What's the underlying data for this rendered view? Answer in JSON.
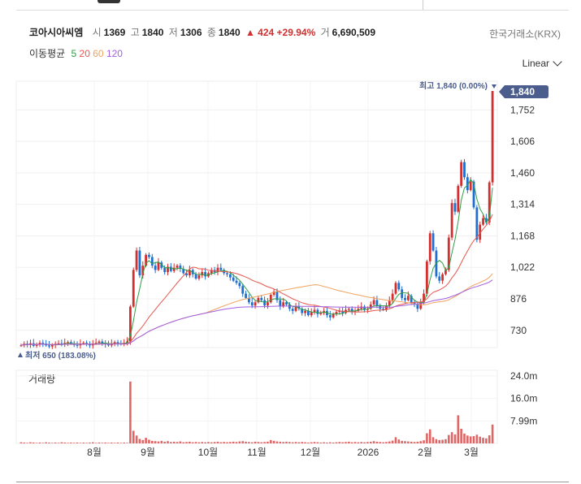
{
  "stock": {
    "name": "코아시아씨엠",
    "open_label": "시",
    "open": "1369",
    "high_label": "고",
    "high": "1840",
    "low_label": "저",
    "low": "1306",
    "close_label": "종",
    "close": "1840",
    "change": "▲ 424 +29.94%",
    "volume_label": "거",
    "volume": "6,690,509",
    "exchange": "한국거래소(KRX)"
  },
  "moving_avg": {
    "label": "이동평균",
    "periods": [
      "5",
      "20",
      "60",
      "120"
    ],
    "colors": [
      "#2e9e44",
      "#e8574f",
      "#f0a35e",
      "#a25fe0"
    ]
  },
  "scale_mode": "Linear",
  "colors": {
    "up": "#d32f2f",
    "down": "#1e6fd0",
    "axis_tag": "#4a5d8c",
    "volume": "#e06666"
  },
  "chart_data": {
    "type": "candlestick",
    "price_ticks": [
      "1,752",
      "1,606",
      "1,460",
      "1,314",
      "1,168",
      "1,022",
      "876",
      "730"
    ],
    "price_tick_values": [
      1752,
      1606,
      1460,
      1314,
      1168,
      1022,
      876,
      730
    ],
    "last_price": "1,840",
    "high_marker": "최고 1,840 (0.00%)",
    "low_marker": "최저 650 (183.08%)",
    "volume_title": "거래량",
    "volume_ticks": [
      "24.0m",
      "16.0m",
      "7.99m"
    ],
    "volume_tick_values": [
      24.0,
      16.0,
      7.99
    ],
    "x_ticks": [
      "8월",
      "9월",
      "10월",
      "11월",
      "12월",
      "2026",
      "2월",
      "3월"
    ],
    "close": [
      660,
      668,
      663,
      670,
      658,
      665,
      672,
      668,
      660,
      655,
      662,
      668,
      670,
      665,
      672,
      675,
      668,
      662,
      660,
      668,
      672,
      665,
      660,
      668,
      672,
      678,
      670,
      665,
      660,
      668,
      675,
      670,
      665,
      672,
      678,
      840,
      1010,
      1100,
      985,
      1030,
      1080,
      1070,
      1030,
      1010,
      1045,
      1020,
      1000,
      1025,
      1005,
      1020,
      1030,
      1015,
      995,
      985,
      1010,
      990,
      970,
      985,
      1000,
      980,
      995,
      1010,
      1000,
      1020,
      1010,
      995,
      990,
      975,
      960,
      950,
      935,
      900,
      880,
      860,
      845,
      860,
      880,
      870,
      845,
      860,
      895,
      910,
      870,
      840,
      860,
      850,
      830,
      820,
      840,
      830,
      810,
      820,
      800,
      815,
      825,
      805,
      810,
      820,
      800,
      790,
      805,
      815,
      820,
      810,
      825,
      830,
      815,
      820,
      830,
      840,
      825,
      830,
      850,
      870,
      845,
      830,
      825,
      845,
      870,
      900,
      950,
      920,
      880,
      870,
      890,
      860,
      850,
      830,
      860,
      900,
      1050,
      1180,
      1100,
      980,
      960,
      990,
      1010,
      1160,
      1320,
      1280,
      1400,
      1510,
      1440,
      1380,
      1420,
      1300,
      1150,
      1220,
      1250,
      1230,
      1416,
      1840
    ],
    "volume_m": [
      0.4,
      0.3,
      0.2,
      0.4,
      0.3,
      0.2,
      0.3,
      0.2,
      0.4,
      0.3,
      0.2,
      0.3,
      0.2,
      0.4,
      0.3,
      0.2,
      0.3,
      0.2,
      0.3,
      0.2,
      0.3,
      0.2,
      0.3,
      0.4,
      0.2,
      0.3,
      0.2,
      0.3,
      0.2,
      0.3,
      0.2,
      0.3,
      0.2,
      0.3,
      0.2,
      22.0,
      4.5,
      2.8,
      1.6,
      1.2,
      2.0,
      1.3,
      0.9,
      0.8,
      0.7,
      0.9,
      0.6,
      0.8,
      0.5,
      0.6,
      0.5,
      0.7,
      0.4,
      0.5,
      0.6,
      0.4,
      0.5,
      0.4,
      0.5,
      0.4,
      0.5,
      0.4,
      0.5,
      0.6,
      0.4,
      0.5,
      0.4,
      0.5,
      0.6,
      0.5,
      0.7,
      0.8,
      0.6,
      0.5,
      0.4,
      0.6,
      0.5,
      0.4,
      0.5,
      0.6,
      1.2,
      0.9,
      0.7,
      0.6,
      0.5,
      0.6,
      0.5,
      0.4,
      0.5,
      0.4,
      0.5,
      0.4,
      0.3,
      0.4,
      0.5,
      0.4,
      0.3,
      0.4,
      0.3,
      0.4,
      0.3,
      0.4,
      0.5,
      0.4,
      0.5,
      0.6,
      0.4,
      0.5,
      0.4,
      0.5,
      0.4,
      0.5,
      0.6,
      0.8,
      0.6,
      0.5,
      0.4,
      0.5,
      0.7,
      1.0,
      2.2,
      1.4,
      0.9,
      0.8,
      0.7,
      0.6,
      0.5,
      0.6,
      0.8,
      1.1,
      3.6,
      5.0,
      2.2,
      1.5,
      1.2,
      1.3,
      1.5,
      3.0,
      4.0,
      3.2,
      10.0,
      5.2,
      3.5,
      2.8,
      2.5,
      2.6,
      3.1,
      2.4,
      2.0,
      1.8,
      2.9,
      6.7
    ]
  }
}
